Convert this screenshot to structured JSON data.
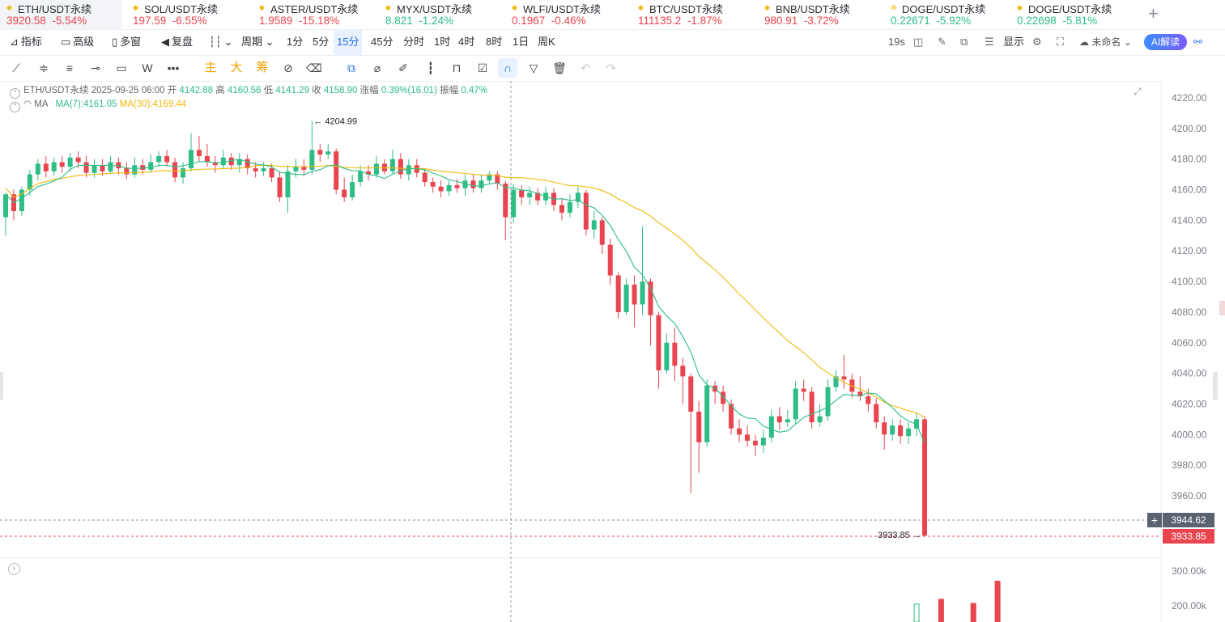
{
  "tickers": [
    {
      "name": "ETH/USDT永续",
      "price": "3920.58",
      "change": "-5.54%",
      "dir": "down",
      "icon": "diamond-icon",
      "active": true
    },
    {
      "name": "SOL/USDT永续",
      "price": "197.59",
      "change": "-6.55%",
      "dir": "down",
      "icon": "diamond-icon"
    },
    {
      "name": "ASTER/USDT永续",
      "price": "1.9589",
      "change": "-15.18%",
      "dir": "down",
      "icon": "diamond-icon"
    },
    {
      "name": "MYX/USDT永续",
      "price": "8.821",
      "change": "-1.24%",
      "dir": "up",
      "icon": "diamond-icon"
    },
    {
      "name": "WLFI/USDT永续",
      "price": "0.1967",
      "change": "-0.46%",
      "dir": "down",
      "icon": "diamond-icon"
    },
    {
      "name": "BTC/USDT永续",
      "price": "111135.2",
      "change": "-1.87%",
      "dir": "down",
      "icon": "diamond-icon"
    },
    {
      "name": "BNB/USDT永续",
      "price": "980.91",
      "change": "-3.72%",
      "dir": "down",
      "icon": "diamond-icon"
    },
    {
      "name": "DOGE/USDT永续",
      "price": "0.22671",
      "change": "-5.92%",
      "dir": "up",
      "icon": "x-circle-icon"
    },
    {
      "name": "DOGE/USDT永续",
      "price": "0.22698",
      "change": "-5.81%",
      "dir": "up",
      "icon": "diamond-icon"
    }
  ],
  "toolbar": {
    "indicator": "指标",
    "advanced": "高级",
    "multi": "多窗",
    "replay": "复盘",
    "period": "周期",
    "intervals": [
      "1分",
      "5分",
      "15分",
      "45分",
      "分时",
      "1时",
      "4时",
      "8时",
      "1日",
      "周K"
    ],
    "selected_interval": "15分",
    "countdown": "19s",
    "display": "显示",
    "unnamed": "未命名",
    "ai": "AI解读"
  },
  "drawtools": {
    "main": "主",
    "big": "大",
    "chip": "筹"
  },
  "info": {
    "symbol": "ETH/USDT永续",
    "time": "2025-09-25 06:00",
    "open_l": "开",
    "open": "4142.88",
    "high_l": "高",
    "high": "4160.56",
    "low_l": "低",
    "low": "4141.29",
    "close_l": "收",
    "close": "4158.90",
    "chg_l": "涨幅",
    "chg": "0.39%(16.01)",
    "amp_l": "振幅",
    "amp": "0.47%",
    "ma_label": "MA",
    "ma7": "MA(7):4161.05",
    "ma30": "MA(30):4169.44"
  },
  "price_axis": [
    "4220.00",
    "4200.00",
    "4180.00",
    "4160.00",
    "4140.00",
    "4120.00",
    "4100.00",
    "4080.00",
    "4060.00",
    "4040.00",
    "4020.00",
    "4000.00",
    "3980.00",
    "3960.00"
  ],
  "volume_axis": [
    "300.00k",
    "200.00k"
  ],
  "markers": {
    "high": "4204.99",
    "low": "3933.85",
    "crosshair_price": "3944.62",
    "last_price": "3933.85"
  },
  "colors": {
    "up": "#2ebd85",
    "down": "#e8454f",
    "ma7": "#2ebd85",
    "ma30": "#f0b90b"
  },
  "chart_data": {
    "type": "candlestick",
    "title": "ETH/USDT永续 15分",
    "ylim": [
      3950,
      4225
    ],
    "candles": [
      [
        4142,
        4157,
        4158,
        4130
      ],
      [
        4157,
        4146,
        4160,
        4140
      ],
      [
        4146,
        4160,
        4162,
        4143
      ],
      [
        4160,
        4170,
        4173,
        4156
      ],
      [
        4170,
        4177,
        4180,
        4166
      ],
      [
        4177,
        4172,
        4182,
        4168
      ],
      [
        4172,
        4178,
        4181,
        4169
      ],
      [
        4178,
        4175,
        4182,
        4171
      ],
      [
        4175,
        4181,
        4184,
        4172
      ],
      [
        4181,
        4178,
        4185,
        4174
      ],
      [
        4178,
        4171,
        4182,
        4168
      ],
      [
        4171,
        4176,
        4180,
        4168
      ],
      [
        4176,
        4172,
        4180,
        4169
      ],
      [
        4172,
        4178,
        4182,
        4170
      ],
      [
        4178,
        4174,
        4181,
        4170
      ],
      [
        4174,
        4170,
        4178,
        4167
      ],
      [
        4170,
        4176,
        4181,
        4168
      ],
      [
        4176,
        4173,
        4180,
        4170
      ],
      [
        4173,
        4178,
        4183,
        4171
      ],
      [
        4178,
        4182,
        4185,
        4175
      ],
      [
        4182,
        4178,
        4186,
        4175
      ],
      [
        4178,
        4168,
        4181,
        4165
      ],
      [
        4168,
        4174,
        4178,
        4164
      ],
      [
        4174,
        4186,
        4197,
        4172
      ],
      [
        4186,
        4182,
        4195,
        4178
      ],
      [
        4182,
        4178,
        4190,
        4175
      ],
      [
        4178,
        4176,
        4182,
        4171
      ],
      [
        4176,
        4181,
        4186,
        4174
      ],
      [
        4181,
        4176,
        4184,
        4173
      ],
      [
        4176,
        4180,
        4184,
        4171
      ],
      [
        4180,
        4174,
        4183,
        4170
      ],
      [
        4174,
        4172,
        4178,
        4168
      ],
      [
        4172,
        4174,
        4178,
        4169
      ],
      [
        4174,
        4168,
        4177,
        4165
      ],
      [
        4168,
        4155,
        4172,
        4152
      ],
      [
        4155,
        4172,
        4176,
        4145
      ],
      [
        4172,
        4175,
        4180,
        4168
      ],
      [
        4175,
        4173,
        4180,
        4169
      ],
      [
        4173,
        4186,
        4205,
        4170
      ],
      [
        4186,
        4183,
        4190,
        4178
      ],
      [
        4183,
        4185,
        4190,
        4180
      ],
      [
        4185,
        4160,
        4187,
        4157
      ],
      [
        4160,
        4155,
        4168,
        4152
      ],
      [
        4155,
        4165,
        4170,
        4153
      ],
      [
        4165,
        4172,
        4176,
        4162
      ],
      [
        4172,
        4170,
        4176,
        4166
      ],
      [
        4170,
        4177,
        4182,
        4168
      ],
      [
        4177,
        4172,
        4180,
        4170
      ],
      [
        4172,
        4180,
        4186,
        4170
      ],
      [
        4180,
        4170,
        4184,
        4167
      ],
      [
        4170,
        4176,
        4180,
        4166
      ],
      [
        4176,
        4171,
        4180,
        4168
      ],
      [
        4171,
        4165,
        4174,
        4162
      ],
      [
        4165,
        4162,
        4168,
        4158
      ],
      [
        4162,
        4159,
        4166,
        4155
      ],
      [
        4159,
        4163,
        4166,
        4156
      ],
      [
        4163,
        4161,
        4167,
        4158
      ],
      [
        4161,
        4166,
        4170,
        4156
      ],
      [
        4166,
        4161,
        4170,
        4158
      ],
      [
        4161,
        4166,
        4170,
        4158
      ],
      [
        4166,
        4170,
        4172,
        4164
      ],
      [
        4170,
        4164,
        4172,
        4160
      ],
      [
        4164,
        4142,
        4166,
        4127
      ],
      [
        4142,
        4160,
        4164,
        4138
      ],
      [
        4160,
        4155,
        4163,
        4150
      ],
      [
        4155,
        4158,
        4162,
        4150
      ],
      [
        4158,
        4153,
        4161,
        4150
      ],
      [
        4153,
        4158,
        4162,
        4150
      ],
      [
        4158,
        4150,
        4161,
        4146
      ],
      [
        4150,
        4145,
        4154,
        4140
      ],
      [
        4145,
        4152,
        4157,
        4142
      ],
      [
        4152,
        4158,
        4162,
        4148
      ],
      [
        4158,
        4134,
        4160,
        4130
      ],
      [
        4134,
        4140,
        4146,
        4128
      ],
      [
        4140,
        4124,
        4142,
        4118
      ],
      [
        4124,
        4104,
        4128,
        4098
      ],
      [
        4104,
        4080,
        4106,
        4076
      ],
      [
        4080,
        4098,
        4102,
        4078
      ],
      [
        4098,
        4085,
        4104,
        4070
      ],
      [
        4085,
        4100,
        4136,
        4078
      ],
      [
        4100,
        4078,
        4102,
        4058
      ],
      [
        4078,
        4042,
        4080,
        4030
      ],
      [
        4042,
        4060,
        4066,
        4040
      ],
      [
        4060,
        4045,
        4070,
        4035
      ],
      [
        4045,
        4038,
        4050,
        4020
      ],
      [
        4038,
        4015,
        4040,
        3962
      ],
      [
        4015,
        3995,
        4022,
        3975
      ],
      [
        3995,
        4032,
        4036,
        3992
      ],
      [
        4032,
        4028,
        4035,
        4020
      ],
      [
        4028,
        4020,
        4032,
        4015
      ],
      [
        4020,
        4004,
        4023,
        4000
      ],
      [
        4004,
        4000,
        4010,
        3995
      ],
      [
        4000,
        3996,
        4006,
        3992
      ],
      [
        3996,
        3993,
        4000,
        3986
      ],
      [
        3993,
        3998,
        4003,
        3988
      ],
      [
        3998,
        4012,
        4016,
        3995
      ],
      [
        4012,
        4008,
        4018,
        4003
      ],
      [
        4008,
        4010,
        4016,
        4005
      ],
      [
        4010,
        4030,
        4035,
        4007
      ],
      [
        4030,
        4028,
        4036,
        4022
      ],
      [
        4028,
        4008,
        4031,
        4004
      ],
      [
        4008,
        4012,
        4020,
        4005
      ],
      [
        4012,
        4031,
        4036,
        4009
      ],
      [
        4031,
        4038,
        4042,
        4028
      ],
      [
        4038,
        4036,
        4052,
        4030
      ],
      [
        4036,
        4028,
        4040,
        4024
      ],
      [
        4028,
        4025,
        4038,
        4022
      ],
      [
        4025,
        4020,
        4030,
        4015
      ],
      [
        4020,
        4008,
        4024,
        4004
      ],
      [
        4008,
        4000,
        4012,
        3990
      ],
      [
        4000,
        4006,
        4010,
        3996
      ],
      [
        4006,
        3999,
        4010,
        3994
      ],
      [
        3999,
        4004,
        4008,
        3994
      ],
      [
        4004,
        4010,
        4014,
        3999
      ],
      [
        4010,
        3934,
        4012,
        3934
      ]
    ],
    "volume": [
      {
        "i": 113,
        "v": 205000,
        "dir": "up"
      },
      {
        "i": 116,
        "v": 220000,
        "dir": "down"
      },
      {
        "i": 120,
        "v": 208000,
        "dir": "down"
      },
      {
        "i": 123,
        "v": 272000,
        "dir": "down"
      }
    ],
    "volume_ylim": [
      150000,
      320000
    ]
  }
}
